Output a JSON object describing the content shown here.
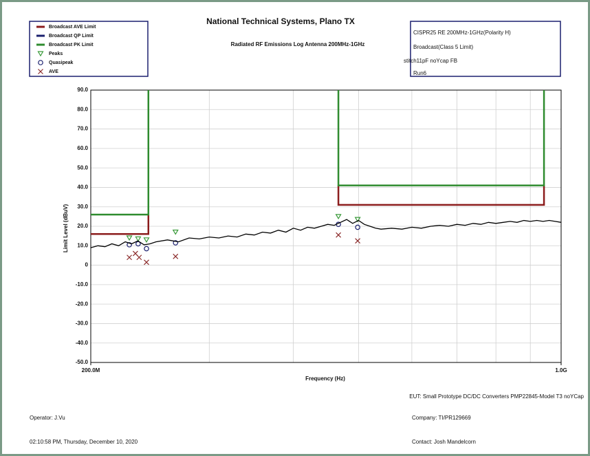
{
  "chart_data": {
    "type": "line",
    "title": "National Technical Systems, Plano TX",
    "subtitle": "Radiated RF Emissions Log Antenna 200MHz-1GHz",
    "info": [
      "CISPR25 RE 200MHz-1GHz(Polarity H)",
      "Broadcast(Class 5 Limit)",
      "stitch11pF noYcap FB",
      "Run6"
    ],
    "footer": {
      "eut": "EUT: Small Prototype DC/DC Converters PMP22845-Model T3 noYCap",
      "operator": "Operator: J.Vu",
      "company": "Company: TI/PR129669",
      "timestamp": "02:10:58 PM, Thursday, December 10, 2020",
      "contact": "Contact: Josh Mandelcorn"
    },
    "xlabel": "Frequency (Hz)",
    "ylabel": "Limit Level (dBuV)",
    "log_x": true,
    "xlim": [
      200,
      1000
    ],
    "xticks": [
      {
        "value": 200,
        "label": "200.0M"
      },
      {
        "value": 1000,
        "label": "1.0G"
      }
    ],
    "xgrid": [
      300,
      400,
      500,
      600,
      700,
      800,
      900
    ],
    "ylim": [
      -50,
      90
    ],
    "yticks": [
      {
        "value": -50,
        "label": "-50.0"
      },
      {
        "value": -40,
        "label": "-40.0"
      },
      {
        "value": -30,
        "label": "-30.0"
      },
      {
        "value": -20,
        "label": "-20.0"
      },
      {
        "value": -10,
        "label": "-10.0"
      },
      {
        "value": 0,
        "label": "0"
      },
      {
        "value": 10,
        "label": "10.0"
      },
      {
        "value": 20,
        "label": "20.0"
      },
      {
        "value": 30,
        "label": "30.0"
      },
      {
        "value": 40,
        "label": "40.0"
      },
      {
        "value": 50,
        "label": "50.0"
      },
      {
        "value": 60,
        "label": "60.0"
      },
      {
        "value": 70,
        "label": "70.0"
      },
      {
        "value": 80,
        "label": "80.0"
      },
      {
        "value": 90,
        "label": "90.0"
      }
    ],
    "grid": true,
    "legend": "top-left",
    "series": [
      {
        "name": "Broadcast AVE Limit",
        "color": "#8b1c1c",
        "marker": "line",
        "x": [
          200,
          243.6,
          243.6,
          null,
          466.7,
          466.7,
          943,
          943
        ],
        "values": [
          16,
          16,
          26,
          null,
          41,
          31,
          31,
          41
        ]
      },
      {
        "name": "Broadcast QP Limit",
        "color": "#1a1f6e",
        "marker": "line",
        "x": [],
        "values": []
      },
      {
        "name": "Broadcast PK Limit",
        "color": "#2e8b2e",
        "marker": "line",
        "x": [
          200,
          243.6,
          243.6,
          null,
          466.7,
          466.7,
          943,
          943
        ],
        "values": [
          26,
          26,
          90,
          null,
          90,
          41,
          41,
          90
        ]
      },
      {
        "name": "Peaks",
        "color": "#3a9a3a",
        "marker": "triangle",
        "x": [
          228.2,
          235.2,
          242,
          267.3,
          466.7,
          498.5
        ],
        "values": [
          14,
          13.5,
          13,
          17,
          25,
          23.5
        ]
      },
      {
        "name": "Quasipeak",
        "color": "#1a1f6e",
        "marker": "circle",
        "x": [
          228.2,
          235.2,
          242,
          267.3,
          466.7,
          498.5
        ],
        "values": [
          10.5,
          11,
          8.5,
          11.5,
          21,
          19.5
        ]
      },
      {
        "name": "AVE",
        "color": "#8b2a2a",
        "marker": "x",
        "x": [
          228.2,
          233,
          236,
          242,
          267.3,
          466.7,
          498.5
        ],
        "values": [
          4,
          6,
          4,
          1.5,
          4.5,
          15.5,
          12.5
        ]
      },
      {
        "color": "#000000",
        "marker": "trace",
        "x": [
          200,
          205,
          210,
          215,
          220,
          225,
          230,
          235,
          240,
          245,
          250,
          260,
          270,
          280,
          290,
          300,
          310,
          320,
          330,
          340,
          350,
          360,
          370,
          380,
          390,
          400,
          410,
          420,
          430,
          440,
          450,
          460,
          470,
          480,
          490,
          500,
          510,
          520,
          530,
          540,
          560,
          580,
          600,
          620,
          640,
          660,
          680,
          700,
          720,
          740,
          760,
          780,
          800,
          820,
          840,
          860,
          880,
          900,
          920,
          940,
          960,
          980,
          1000
        ],
        "values": [
          9,
          10,
          9.5,
          11,
          10,
          12,
          11,
          12.5,
          10.5,
          11,
          12,
          13,
          12,
          14,
          13.5,
          14.5,
          14,
          15,
          14.5,
          16,
          15.5,
          17,
          16.5,
          18,
          17,
          19,
          18,
          19.5,
          19,
          20,
          21,
          20.5,
          22,
          23.5,
          21.5,
          23,
          21,
          20,
          19,
          18.5,
          19,
          18.5,
          19.5,
          19,
          20,
          20.5,
          20,
          21,
          20.5,
          21.5,
          21,
          22,
          21.5,
          22,
          22.5,
          22,
          23,
          22.5,
          23,
          22.5,
          23,
          22.5,
          22
        ]
      }
    ]
  }
}
